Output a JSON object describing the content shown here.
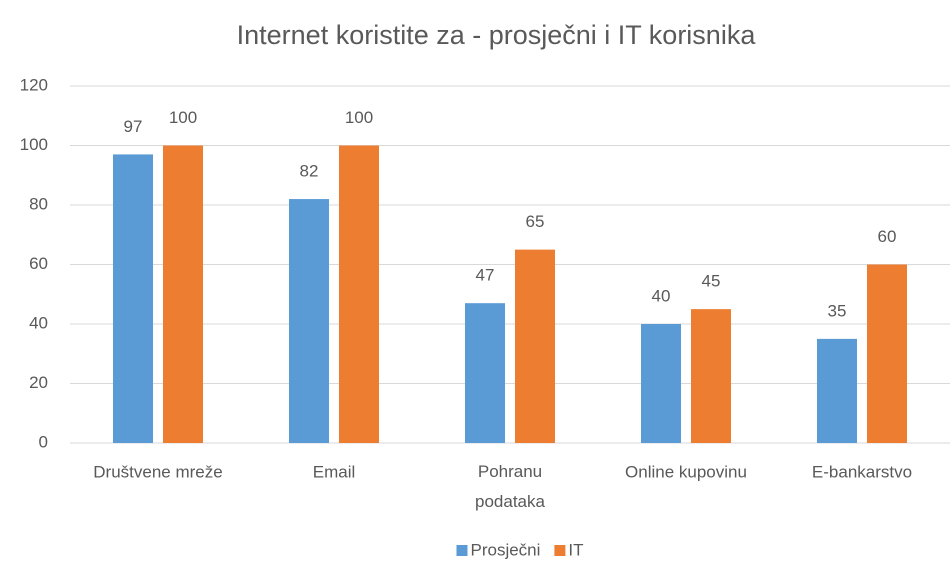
{
  "chart_data": {
    "type": "bar",
    "title": "Internet koristite za - prosječni i IT korisnika",
    "categories": [
      "Društvene mreže",
      "Email",
      "Pohranu podataka",
      "Online kupovinu",
      "E-bankarstvo"
    ],
    "series": [
      {
        "name": "Prosječni",
        "color": "#5b9bd5",
        "values": [
          97,
          82,
          47,
          40,
          35
        ]
      },
      {
        "name": "IT",
        "color": "#ed7d31",
        "values": [
          100,
          100,
          65,
          45,
          60
        ]
      }
    ],
    "ylim": [
      0,
      120
    ],
    "yticks": [
      0,
      20,
      40,
      60,
      80,
      100,
      120
    ],
    "grid": true,
    "legend": "bottom"
  }
}
